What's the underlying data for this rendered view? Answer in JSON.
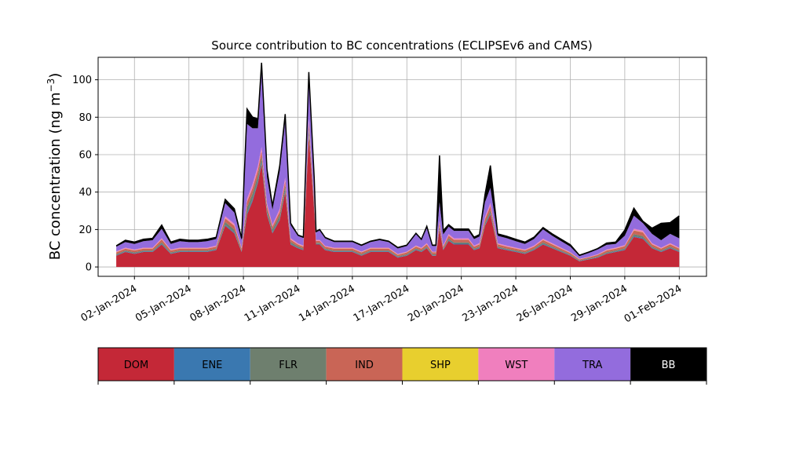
{
  "chart_data": {
    "type": "area",
    "stacked": true,
    "title": "Source contribution to BC concentrations (ECLIPSEv6 and CAMS)",
    "ylabel_text": "BC concentration (ng m",
    "ylabel_sup": "−3",
    "ylabel_close": ")",
    "xlabel": "",
    "x_start": "2024-01-01T00:00",
    "x_end": "2024-02-01T00:00",
    "xlim": [
      "2024-01-00T00:00",
      "2024-02-02T12:00"
    ],
    "ylim": [
      -5,
      112
    ],
    "yticks": [
      0,
      20,
      40,
      60,
      80,
      100
    ],
    "xticks": [
      {
        "date": "2024-01-02",
        "label": "02-Jan-2024"
      },
      {
        "date": "2024-01-05",
        "label": "05-Jan-2024"
      },
      {
        "date": "2024-01-08",
        "label": "08-Jan-2024"
      },
      {
        "date": "2024-01-11",
        "label": "11-Jan-2024"
      },
      {
        "date": "2024-01-14",
        "label": "14-Jan-2024"
      },
      {
        "date": "2024-01-17",
        "label": "17-Jan-2024"
      },
      {
        "date": "2024-01-20",
        "label": "20-Jan-2024"
      },
      {
        "date": "2024-01-23",
        "label": "23-Jan-2024"
      },
      {
        "date": "2024-01-26",
        "label": "26-Jan-2024"
      },
      {
        "date": "2024-01-29",
        "label": "29-Jan-2024"
      },
      {
        "date": "2024-02-01",
        "label": "01-Feb-2024"
      }
    ],
    "grid": true,
    "legend_position": "bottom",
    "legend": [
      {
        "name": "DOM",
        "color": "#c42837"
      },
      {
        "name": "ENE",
        "color": "#3a78b0"
      },
      {
        "name": "FLR",
        "color": "#6e7f6e"
      },
      {
        "name": "IND",
        "color": "#c96556"
      },
      {
        "name": "SHP",
        "color": "#e8cf2e"
      },
      {
        "name": "WST",
        "color": "#f07fbe"
      },
      {
        "name": "TRA",
        "color": "#936cdd"
      },
      {
        "name": "BB",
        "color": "#000000"
      }
    ],
    "series_approx": {
      "x_day_offsets": [
        0,
        0.5,
        1,
        1.5,
        2,
        2.5,
        3,
        3.5,
        4,
        4.5,
        5,
        5.5,
        6,
        6.5,
        6.9,
        7.2,
        7.5,
        7.8,
        8,
        8.3,
        8.6,
        9,
        9.3,
        9.6,
        10,
        10.3,
        10.6,
        10.9,
        11,
        11.2,
        11.5,
        12,
        12.5,
        13,
        13.5,
        14,
        14.5,
        15,
        15.5,
        16,
        16.5,
        16.8,
        17.1,
        17.4,
        17.6,
        17.8,
        18,
        18.3,
        18.6,
        19,
        19.4,
        19.7,
        20,
        20.3,
        20.6,
        21,
        21.5,
        22,
        22.5,
        23,
        23.5,
        24,
        24.5,
        25,
        25.5,
        26,
        26.5,
        27,
        27.5,
        28,
        28.5,
        29,
        29.5,
        30,
        30.5,
        31
      ],
      "DOM": [
        6,
        8,
        7,
        8,
        8,
        12,
        7,
        8,
        8,
        8,
        8,
        9,
        22,
        18,
        8,
        28,
        35,
        45,
        55,
        28,
        18,
        25,
        40,
        12,
        10,
        9,
        70,
        30,
        12,
        12,
        9,
        8,
        8,
        8,
        6,
        8,
        8,
        8,
        5,
        6,
        9,
        8,
        10,
        6,
        6,
        20,
        9,
        14,
        12,
        12,
        12,
        9,
        10,
        22,
        28,
        10,
        9,
        8,
        7,
        9,
        12,
        10,
        8,
        6,
        3,
        4,
        5,
        7,
        8,
        9,
        16,
        15,
        10,
        8,
        10,
        8
      ],
      "ENE": [
        0.3,
        0.3,
        0.3,
        0.3,
        0.3,
        0.4,
        0.3,
        0.3,
        0.3,
        0.3,
        0.3,
        0.3,
        0.5,
        0.5,
        0.3,
        0.8,
        1,
        1,
        1,
        0.7,
        0.5,
        0.6,
        0.8,
        0.4,
        0.3,
        0.3,
        1,
        0.6,
        0.3,
        0.3,
        0.3,
        0.3,
        0.3,
        0.3,
        0.3,
        0.3,
        0.3,
        0.3,
        0.3,
        0.3,
        0.3,
        0.3,
        0.3,
        0.3,
        0.3,
        0.5,
        0.3,
        0.4,
        0.4,
        0.4,
        0.4,
        0.3,
        0.3,
        0.5,
        0.6,
        0.3,
        0.3,
        0.3,
        0.3,
        0.3,
        0.4,
        0.3,
        0.3,
        0.3,
        0.2,
        0.2,
        0.2,
        0.3,
        0.3,
        0.3,
        0.5,
        0.5,
        0.3,
        0.3,
        0.3,
        0.3
      ],
      "FLR": [
        0.5,
        0.5,
        0.5,
        0.5,
        0.5,
        0.8,
        0.5,
        0.5,
        0.5,
        0.5,
        0.5,
        0.5,
        1.5,
        1.5,
        0.5,
        3,
        3,
        3,
        3,
        2,
        1.5,
        2,
        2.5,
        1,
        0.7,
        0.6,
        3,
        1.5,
        0.6,
        0.6,
        0.5,
        0.5,
        0.5,
        0.5,
        0.5,
        0.5,
        0.5,
        0.5,
        0.4,
        0.5,
        0.6,
        0.5,
        0.6,
        0.5,
        0.5,
        1,
        0.5,
        0.8,
        0.7,
        0.7,
        0.7,
        0.5,
        0.6,
        1,
        1.5,
        0.6,
        0.5,
        0.5,
        0.5,
        0.5,
        0.7,
        0.6,
        0.5,
        0.4,
        0.3,
        0.3,
        0.4,
        0.5,
        0.5,
        0.6,
        1,
        1,
        0.6,
        0.5,
        0.6,
        0.5
      ],
      "IND": [
        1,
        1,
        1,
        1,
        1,
        1.5,
        1,
        1,
        1,
        1,
        1,
        1,
        2,
        2,
        1,
        3,
        3,
        3,
        3,
        2,
        1.5,
        2,
        2.5,
        1.2,
        1,
        1,
        3,
        2,
        1,
        1,
        1,
        1,
        1,
        1,
        1,
        1,
        1,
        1,
        0.8,
        1,
        1,
        1,
        1.2,
        1,
        1,
        2,
        1,
        1.5,
        1.4,
        1.4,
        1.4,
        1,
        1.2,
        2,
        2.5,
        1.2,
        1,
        1,
        1,
        1,
        1.3,
        1.2,
        1,
        0.8,
        0.5,
        0.6,
        0.8,
        1,
        1,
        1.2,
        2,
        2,
        1.2,
        1,
        1.2,
        1
      ],
      "SHP": [
        0.1,
        0.1,
        0.1,
        0.1,
        0.1,
        0.1,
        0.1,
        0.1,
        0.1,
        0.1,
        0.1,
        0.1,
        0.1,
        0.1,
        0.1,
        0.1,
        0.1,
        0.1,
        0.1,
        0.1,
        0.1,
        0.1,
        0.1,
        0.1,
        0.1,
        0.1,
        0.1,
        0.1,
        0.1,
        0.1,
        0.1,
        0.1,
        0.1,
        0.1,
        0.1,
        0.1,
        0.1,
        0.1,
        0.1,
        0.1,
        0.1,
        0.1,
        0.1,
        0.1,
        0.1,
        0.1,
        0.1,
        0.1,
        0.1,
        0.1,
        0.1,
        0.1,
        0.1,
        0.1,
        0.1,
        0.1,
        0.1,
        0.1,
        0.1,
        0.1,
        0.1,
        0.1,
        0.1,
        0.1,
        0.1,
        0.1,
        0.1,
        0.1,
        0.1,
        0.1,
        0.1,
        0.1,
        0.1,
        0.1,
        0.1,
        0.1
      ],
      "WST": [
        0.4,
        0.4,
        0.4,
        0.4,
        0.4,
        0.6,
        0.4,
        0.4,
        0.4,
        0.4,
        0.4,
        0.5,
        1,
        1,
        0.4,
        1.5,
        2,
        2,
        2,
        1.3,
        1,
        1.3,
        1.8,
        0.7,
        0.5,
        0.5,
        2,
        1.2,
        0.5,
        0.5,
        0.4,
        0.4,
        0.4,
        0.4,
        0.3,
        0.4,
        0.4,
        0.4,
        0.3,
        0.3,
        0.5,
        0.4,
        0.5,
        0.3,
        0.3,
        1,
        0.5,
        0.8,
        0.7,
        0.7,
        0.7,
        0.5,
        0.6,
        1,
        1.5,
        0.5,
        0.5,
        0.4,
        0.4,
        0.5,
        0.6,
        0.5,
        0.4,
        0.3,
        0.2,
        0.2,
        0.3,
        0.4,
        0.4,
        0.5,
        0.8,
        0.8,
        0.5,
        0.4,
        0.5,
        0.4
      ],
      "TRA": [
        2.5,
        3,
        3,
        3.5,
        4,
        5,
        3,
        3.5,
        3,
        3,
        3.5,
        3.5,
        7,
        6,
        4,
        40,
        30,
        20,
        40,
        14,
        8,
        20,
        30,
        7,
        4,
        4,
        20,
        10,
        4,
        5,
        4,
        3,
        3,
        3,
        3,
        3,
        4,
        3,
        3,
        3,
        6,
        4,
        8,
        3,
        3,
        10,
        6,
        4,
        4,
        4,
        4,
        3.5,
        3.5,
        8,
        8,
        4,
        4,
        3.5,
        3,
        3.5,
        5,
        4,
        3.5,
        3,
        1.5,
        2,
        2.5,
        2.5,
        2,
        5,
        7,
        4,
        5,
        4,
        5,
        5
      ],
      "BB": [
        0.5,
        1,
        1,
        1,
        1,
        2,
        1,
        1,
        1,
        1,
        1,
        1,
        2,
        2,
        1,
        8,
        6,
        5,
        5,
        4,
        2,
        3,
        4,
        1,
        0.5,
        0.5,
        5,
        2,
        0.5,
        0.5,
        0.5,
        0.5,
        0.5,
        0.5,
        0.5,
        0.5,
        0.5,
        0.5,
        0.5,
        0.5,
        0.5,
        0.5,
        1,
        0.5,
        0.5,
        25,
        2,
        1,
        1,
        1,
        1,
        1,
        1,
        4,
        12,
        1,
        1,
        1,
        1,
        1,
        1,
        1,
        1,
        1,
        0.5,
        0.5,
        0.5,
        1,
        1,
        3,
        4,
        1,
        3,
        9,
        6,
        12
      ]
    }
  }
}
